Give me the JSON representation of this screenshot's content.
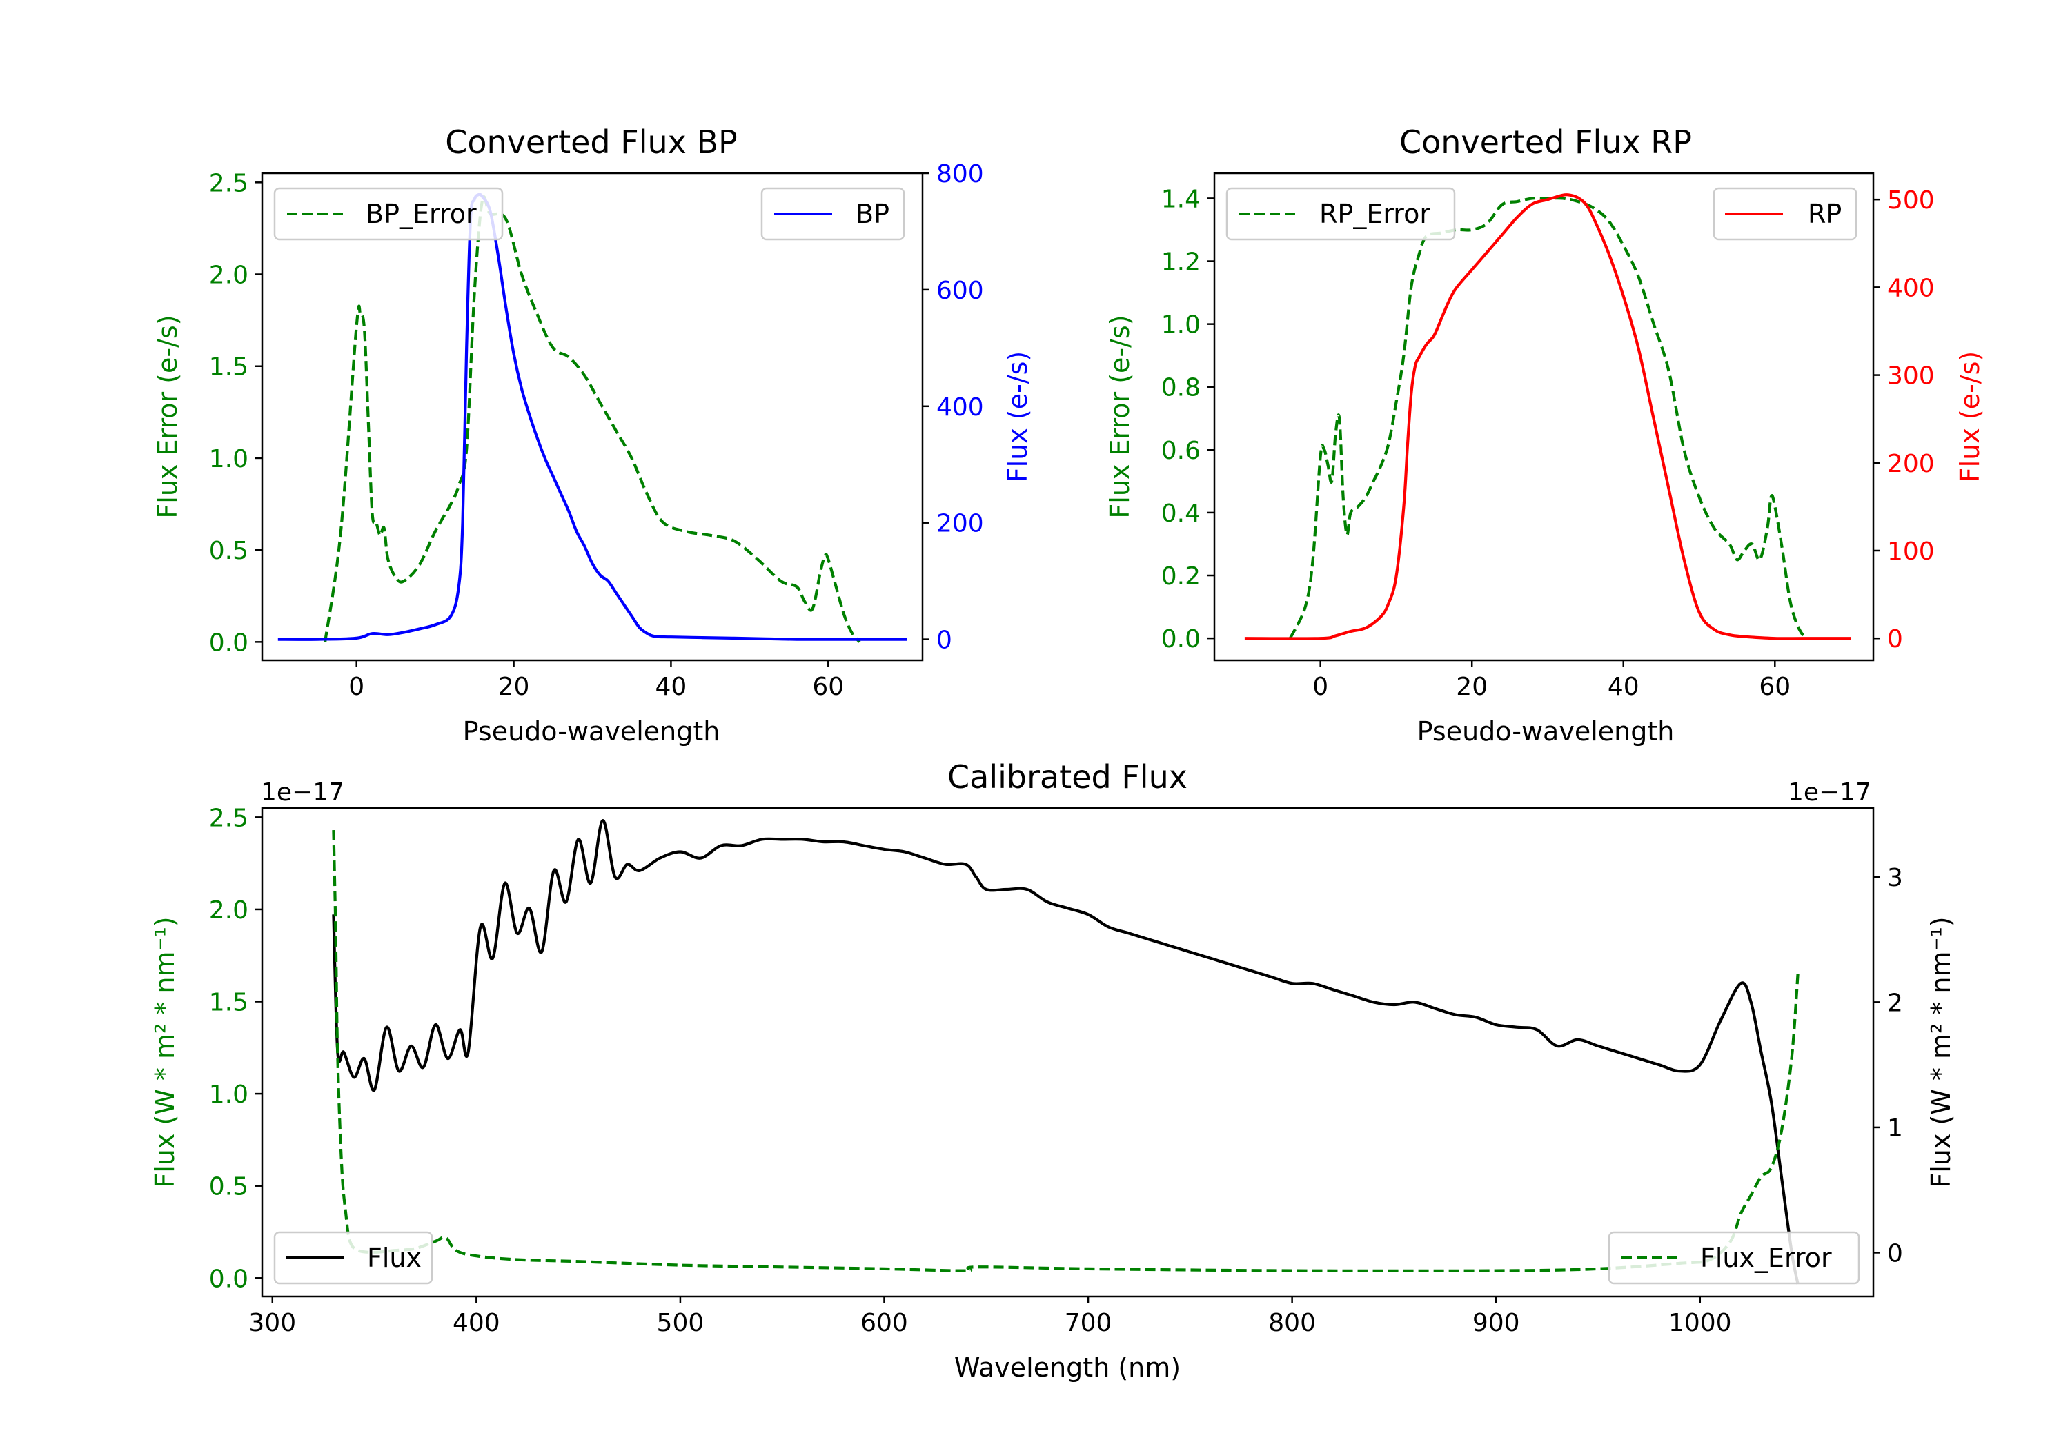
{
  "colors": {
    "error": "#008000",
    "bp": "#0000ff",
    "rp": "#ff0000",
    "flux": "#000000"
  },
  "chart_data": [
    {
      "type": "line",
      "title": "Converted Flux BP",
      "xlabel": "Pseudo-wavelength",
      "ylabel_left": "Flux Error (e-/s)",
      "ylabel_right": "Flux (e-/s)",
      "xlim": [
        -12,
        72
      ],
      "ylim_left": [
        -0.1,
        2.55
      ],
      "ylim_right": [
        -36,
        800
      ],
      "xticks": [
        "0",
        "20",
        "40",
        "60"
      ],
      "yticks_left": [
        "0.0",
        "0.5",
        "1.0",
        "1.5",
        "2.0",
        "2.5"
      ],
      "yticks_right": [
        "0",
        "200",
        "400",
        "600",
        "800"
      ],
      "legend_left": "BP_Error",
      "legend_right": "BP",
      "series": [
        {
          "name": "BP_Error",
          "axis": "left",
          "style": "dashed",
          "x": [
            -4,
            -2,
            0,
            0.5,
            1,
            1.5,
            2,
            2.5,
            3,
            3.5,
            4,
            5,
            6,
            8,
            10,
            12,
            13,
            14,
            15,
            16,
            17,
            19,
            21,
            23,
            25,
            27,
            29,
            31,
            33,
            35,
            37,
            39,
            42,
            45,
            48,
            51,
            54,
            56,
            57,
            58,
            59,
            59.6,
            60,
            61,
            62,
            63,
            64
          ],
          "y": [
            0,
            0.6,
            1.72,
            1.78,
            1.7,
            1.2,
            0.7,
            0.65,
            0.58,
            0.62,
            0.45,
            0.35,
            0.33,
            0.42,
            0.6,
            0.75,
            0.85,
            1.05,
            1.9,
            2.4,
            2.33,
            2.3,
            2.0,
            1.78,
            1.6,
            1.55,
            1.45,
            1.3,
            1.15,
            1.0,
            0.8,
            0.65,
            0.6,
            0.58,
            0.55,
            0.45,
            0.33,
            0.3,
            0.22,
            0.18,
            0.38,
            0.47,
            0.45,
            0.3,
            0.15,
            0.05,
            0
          ]
        },
        {
          "name": "BP",
          "axis": "right",
          "style": "solid",
          "x": [
            -10,
            -5,
            0,
            2,
            4,
            6,
            8,
            10,
            12,
            13,
            13.5,
            14,
            14.5,
            15,
            15.5,
            16,
            17,
            18,
            19,
            20,
            21,
            22,
            23,
            24,
            25,
            26,
            27,
            28,
            29,
            30,
            31,
            32,
            33,
            34,
            35,
            36,
            37,
            38,
            40,
            44,
            48,
            52,
            56,
            60,
            64,
            68,
            70
          ],
          "y": [
            0,
            0,
            2,
            10,
            8,
            12,
            18,
            25,
            40,
            90,
            200,
            500,
            720,
            755,
            763,
            760,
            735,
            660,
            570,
            490,
            430,
            385,
            345,
            310,
            280,
            250,
            220,
            185,
            160,
            130,
            110,
            100,
            80,
            60,
            40,
            20,
            10,
            5,
            4,
            3,
            2,
            1,
            0,
            0,
            0,
            0,
            0
          ]
        }
      ]
    },
    {
      "type": "line",
      "title": "Converted Flux RP",
      "xlabel": "Pseudo-wavelength",
      "ylabel_left": "Flux Error (e-/s)",
      "ylabel_right": "Flux (e-/s)",
      "xlim": [
        -14,
        73
      ],
      "ylim_left": [
        -0.07,
        1.48
      ],
      "ylim_right": [
        -25,
        530
      ],
      "xticks": [
        "0",
        "20",
        "40",
        "60"
      ],
      "yticks_left": [
        "0.0",
        "0.2",
        "0.4",
        "0.6",
        "0.8",
        "1.0",
        "1.2",
        "1.4"
      ],
      "yticks_right": [
        "0",
        "100",
        "200",
        "300",
        "400",
        "500"
      ],
      "legend_left": "RP_Error",
      "legend_right": "RP",
      "series": [
        {
          "name": "RP_Error",
          "axis": "left",
          "style": "dashed",
          "x": [
            -4,
            -2,
            -1,
            0,
            0.5,
            1,
            1.5,
            2,
            2.5,
            3,
            3.5,
            4,
            5,
            6,
            7,
            8,
            9,
            10,
            11,
            12,
            13,
            14,
            16,
            18,
            20,
            22,
            24,
            26,
            28,
            30,
            32,
            34,
            36,
            38,
            40,
            42,
            44,
            46,
            48,
            50,
            52,
            54,
            55,
            56,
            57,
            58,
            59,
            59.5,
            60,
            61,
            62,
            63,
            64
          ],
          "y": [
            0,
            0.1,
            0.25,
            0.58,
            0.6,
            0.55,
            0.5,
            0.65,
            0.7,
            0.45,
            0.33,
            0.4,
            0.42,
            0.45,
            0.5,
            0.55,
            0.62,
            0.75,
            0.9,
            1.12,
            1.22,
            1.28,
            1.29,
            1.3,
            1.3,
            1.32,
            1.38,
            1.39,
            1.4,
            1.4,
            1.4,
            1.39,
            1.37,
            1.33,
            1.25,
            1.15,
            1.0,
            0.85,
            0.6,
            0.45,
            0.35,
            0.3,
            0.25,
            0.28,
            0.3,
            0.25,
            0.35,
            0.45,
            0.42,
            0.28,
            0.12,
            0.04,
            0
          ]
        },
        {
          "name": "RP",
          "axis": "right",
          "style": "solid",
          "x": [
            -10,
            0,
            2,
            4,
            6,
            8,
            9,
            10,
            11,
            11.5,
            12,
            12.5,
            13,
            14,
            15,
            16,
            17,
            18,
            20,
            22,
            24,
            26,
            28,
            30,
            32,
            33,
            34,
            35,
            36,
            38,
            40,
            42,
            44,
            46,
            48,
            50,
            52,
            54,
            56,
            60,
            64,
            70
          ],
          "y": [
            0,
            0,
            3,
            8,
            12,
            25,
            40,
            70,
            150,
            220,
            280,
            310,
            320,
            335,
            345,
            365,
            385,
            400,
            420,
            440,
            460,
            480,
            495,
            500,
            505,
            505,
            502,
            495,
            480,
            440,
            390,
            330,
            250,
            170,
            90,
            30,
            10,
            4,
            2,
            0,
            0,
            0
          ]
        }
      ]
    },
    {
      "type": "line",
      "title": "Calibrated Flux",
      "xlabel": "Wavelength (nm)",
      "ylabel_left": "Flux (W * m² * nm⁻¹)",
      "ylabel_right": "Flux (W * m² * nm⁻¹)",
      "offset_left": "1e−17",
      "offset_right": "1e−17",
      "xlim": [
        295,
        1085
      ],
      "ylim_left": [
        -0.1,
        2.55
      ],
      "ylim_right": [
        -0.35,
        3.55
      ],
      "xticks": [
        "300",
        "400",
        "500",
        "600",
        "700",
        "800",
        "900",
        "1000"
      ],
      "yticks_left": [
        "0.0",
        "0.5",
        "1.0",
        "1.5",
        "2.0",
        "2.5"
      ],
      "yticks_right": [
        "0",
        "1",
        "2",
        "3"
      ],
      "legend_left": "Flux",
      "legend_right": "Flux_Error",
      "series": [
        {
          "name": "Flux",
          "axis": "right",
          "style": "solid",
          "x": [
            330,
            332,
            335,
            340,
            345,
            350,
            356,
            362,
            368,
            374,
            380,
            386,
            392,
            396,
            402,
            408,
            414,
            420,
            426,
            432,
            438,
            444,
            450,
            456,
            462,
            468,
            474,
            480,
            490,
            500,
            510,
            520,
            530,
            540,
            550,
            560,
            570,
            580,
            590,
            600,
            610,
            620,
            630,
            640,
            645,
            650,
            660,
            670,
            680,
            690,
            700,
            710,
            720,
            730,
            740,
            750,
            760,
            770,
            780,
            790,
            800,
            810,
            820,
            830,
            840,
            850,
            860,
            870,
            880,
            890,
            900,
            910,
            920,
            930,
            940,
            950,
            960,
            970,
            980,
            990,
            1000,
            1010,
            1020,
            1025,
            1030,
            1035,
            1040,
            1045,
            1048
          ],
          "y": [
            2.7,
            1.6,
            1.6,
            1.4,
            1.55,
            1.3,
            1.8,
            1.45,
            1.65,
            1.48,
            1.82,
            1.55,
            1.78,
            1.6,
            2.6,
            2.35,
            2.95,
            2.55,
            2.75,
            2.4,
            3.05,
            2.8,
            3.3,
            2.95,
            3.45,
            3.0,
            3.1,
            3.05,
            3.15,
            3.2,
            3.15,
            3.25,
            3.25,
            3.3,
            3.3,
            3.3,
            3.28,
            3.28,
            3.25,
            3.22,
            3.2,
            3.15,
            3.1,
            3.1,
            3.0,
            2.9,
            2.9,
            2.9,
            2.8,
            2.75,
            2.7,
            2.6,
            2.55,
            2.5,
            2.45,
            2.4,
            2.35,
            2.3,
            2.25,
            2.2,
            2.15,
            2.15,
            2.1,
            2.05,
            2.0,
            1.98,
            2.0,
            1.95,
            1.9,
            1.88,
            1.82,
            1.8,
            1.78,
            1.65,
            1.7,
            1.65,
            1.6,
            1.55,
            1.5,
            1.45,
            1.5,
            1.85,
            2.15,
            2.0,
            1.6,
            1.2,
            0.6,
            0.0,
            -0.25
          ]
        },
        {
          "name": "Flux_Error",
          "axis": "left",
          "style": "dashed",
          "x": [
            330,
            331,
            332,
            334,
            336,
            338,
            342,
            350,
            360,
            370,
            380,
            385,
            390,
            400,
            420,
            450,
            500,
            550,
            600,
            640,
            645,
            700,
            800,
            900,
            950,
            990,
            1005,
            1015,
            1020,
            1025,
            1030,
            1035,
            1040,
            1045,
            1048
          ],
          "y": [
            2.43,
            1.9,
            1.2,
            0.6,
            0.35,
            0.2,
            0.15,
            0.14,
            0.15,
            0.16,
            0.2,
            0.22,
            0.15,
            0.12,
            0.1,
            0.09,
            0.07,
            0.06,
            0.05,
            0.04,
            0.06,
            0.05,
            0.04,
            0.04,
            0.05,
            0.08,
            0.1,
            0.2,
            0.35,
            0.45,
            0.55,
            0.6,
            0.8,
            1.2,
            1.65
          ]
        }
      ]
    }
  ]
}
